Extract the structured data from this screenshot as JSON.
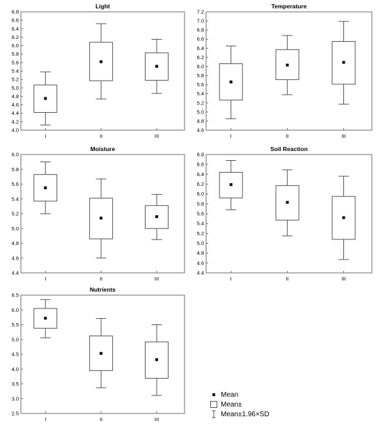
{
  "chart_data": [
    {
      "type": "box",
      "title": "Light",
      "categories": [
        "I",
        "II",
        "III"
      ],
      "ylim": [
        4.0,
        6.8
      ],
      "yticks": [
        "4.0",
        "4.2",
        "4.4",
        "4.6",
        "4.8",
        "5.0",
        "5.2",
        "5.4",
        "5.6",
        "5.8",
        "6.0",
        "6.2",
        "6.4",
        "6.6",
        "6.8"
      ],
      "mean": [
        4.75,
        5.62,
        5.51
      ],
      "box_low": [
        4.42,
        5.17,
        5.18
      ],
      "box_high": [
        5.07,
        6.08,
        5.83
      ],
      "whisker_low": [
        4.12,
        4.74,
        4.87
      ],
      "whisker_high": [
        5.38,
        6.52,
        6.15
      ]
    },
    {
      "type": "box",
      "title": "Temperature",
      "categories": [
        "I",
        "II",
        "III"
      ],
      "ylim": [
        4.6,
        7.2
      ],
      "yticks": [
        "4.6",
        "4.8",
        "5.0",
        "5.2",
        "5.4",
        "5.6",
        "5.8",
        "6.0",
        "6.2",
        "6.4",
        "6.6",
        "6.8",
        "7.0",
        "7.2"
      ],
      "mean": [
        5.66,
        6.03,
        6.09
      ],
      "box_low": [
        5.26,
        5.71,
        5.61
      ],
      "box_high": [
        6.06,
        6.37,
        6.55
      ],
      "whisker_low": [
        4.85,
        5.38,
        5.17
      ],
      "whisker_high": [
        6.45,
        6.68,
        6.99
      ]
    },
    {
      "type": "box",
      "title": "Moisture",
      "categories": [
        "I",
        "II",
        "III"
      ],
      "ylim": [
        4.4,
        6.0
      ],
      "yticks": [
        "4.4",
        "4.6",
        "4.8",
        "5.0",
        "5.2",
        "5.4",
        "5.6",
        "5.8",
        "6.0"
      ],
      "mean": [
        5.55,
        5.14,
        5.16
      ],
      "box_low": [
        5.37,
        4.86,
        5.0
      ],
      "box_high": [
        5.73,
        5.41,
        5.31
      ],
      "whisker_low": [
        5.2,
        4.6,
        4.85
      ],
      "whisker_high": [
        5.9,
        5.67,
        5.46
      ]
    },
    {
      "type": "box",
      "title": "Soil Reaction",
      "categories": [
        "I",
        "II",
        "III"
      ],
      "ylim": [
        4.4,
        6.8
      ],
      "yticks": [
        "4.4",
        "4.6",
        "4.8",
        "5.0",
        "5.2",
        "5.4",
        "5.6",
        "5.8",
        "6.0",
        "6.2",
        "6.4",
        "6.6",
        "6.8"
      ],
      "mean": [
        6.19,
        5.83,
        5.52
      ],
      "box_low": [
        5.92,
        5.47,
        5.08
      ],
      "box_high": [
        6.44,
        6.17,
        5.95
      ],
      "whisker_low": [
        5.68,
        5.15,
        4.67
      ],
      "whisker_high": [
        6.68,
        6.49,
        6.36
      ]
    },
    {
      "type": "box",
      "title": "Nutrients",
      "categories": [
        "I",
        "II",
        "III"
      ],
      "ylim": [
        2.5,
        6.5
      ],
      "yticks": [
        "2.5",
        "3.0",
        "3.5",
        "4.0",
        "4.5",
        "5.0",
        "5.5",
        "6.0",
        "6.5"
      ],
      "mean": [
        5.72,
        4.53,
        4.32
      ],
      "box_low": [
        5.38,
        3.95,
        3.69
      ],
      "box_high": [
        6.05,
        5.12,
        4.92
      ],
      "whisker_low": [
        5.06,
        3.37,
        3.11
      ],
      "whisker_high": [
        6.35,
        5.71,
        5.5
      ]
    }
  ],
  "legend": {
    "mean": "Mean",
    "box": "Mean±",
    "whisker": "Mean±1.96×SD"
  },
  "colors": {
    "box_stroke": "#555555",
    "frame": "#6e6e6e",
    "mean_marker": "#000000"
  }
}
